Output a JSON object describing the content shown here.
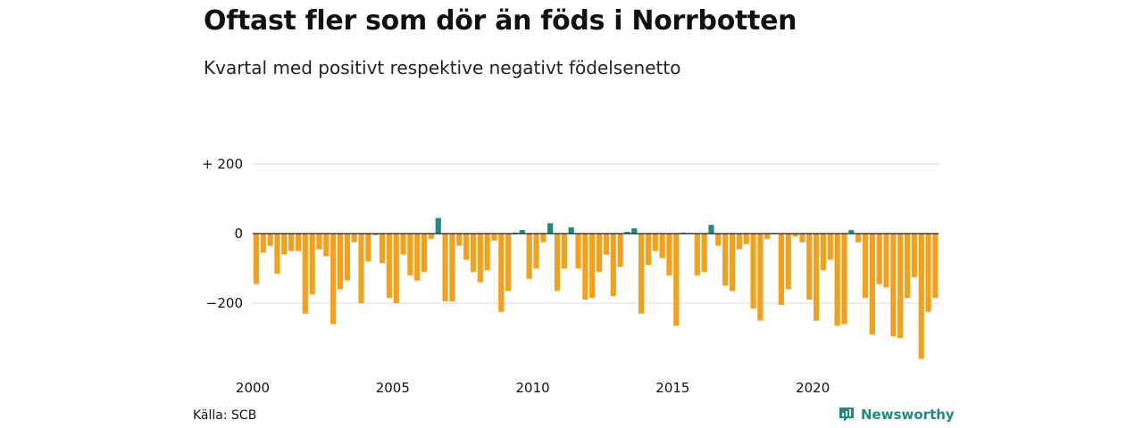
{
  "header": {
    "title": "Oftast fler som dör än föds i Norrbotten",
    "subtitle": "Kvartal med positivt respektive negativt födelsenetto"
  },
  "footer": {
    "source": "Källa: SCB",
    "brand": "Newsworthy",
    "brand_icon": "newsworthy-logo-icon"
  },
  "colors": {
    "positive": "#1f8a7f",
    "negative": "#f5a01a",
    "grid": "#d9d9d9",
    "zero_line": "#222222"
  },
  "chart_data": {
    "type": "bar",
    "title": "Oftast fler som dör än föds i Norrbotten",
    "subtitle": "Kvartal med positivt respektive negativt födelsenetto",
    "xlabel": "",
    "ylabel": "",
    "x_start": "2000 Q1",
    "x_ticks": [
      {
        "label": "2000",
        "index": 0
      },
      {
        "label": "2005",
        "index": 20
      },
      {
        "label": "2010",
        "index": 40
      },
      {
        "label": "2015",
        "index": 60
      },
      {
        "label": "2020",
        "index": 80
      }
    ],
    "y_ticks": [
      {
        "label": "+ 200",
        "value": 200
      },
      {
        "label": "0",
        "value": 0
      },
      {
        "label": "−200",
        "value": -200
      }
    ],
    "ylim": [
      -360,
      200
    ],
    "grid": true,
    "values": [
      -145,
      -55,
      -35,
      -115,
      -60,
      -50,
      -50,
      -230,
      -175,
      -45,
      -65,
      -260,
      -160,
      -135,
      -25,
      -200,
      -80,
      -5,
      -85,
      -185,
      -200,
      -60,
      -120,
      -135,
      -110,
      -15,
      45,
      -195,
      -195,
      -35,
      -75,
      -110,
      -140,
      -105,
      -20,
      -225,
      -165,
      3,
      10,
      -130,
      -100,
      -25,
      30,
      -165,
      -100,
      18,
      -100,
      -190,
      -185,
      -110,
      -60,
      -180,
      -95,
      5,
      15,
      -230,
      -90,
      -50,
      -70,
      -120,
      -265,
      3,
      1,
      -120,
      -110,
      25,
      -35,
      -150,
      -165,
      -45,
      -30,
      -215,
      -250,
      -15,
      1,
      -205,
      -160,
      -8,
      -25,
      -190,
      -250,
      -105,
      -75,
      -265,
      -260,
      10,
      -25,
      -185,
      -290,
      -145,
      -155,
      -295,
      -300,
      -185,
      -125,
      -360,
      -225,
      -185
    ]
  }
}
